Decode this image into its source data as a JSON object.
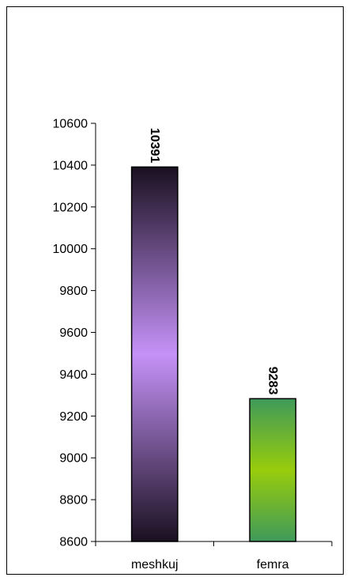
{
  "chart_data": {
    "type": "bar",
    "categories": [
      "meshkuj",
      "femra"
    ],
    "values": [
      10391,
      9283
    ],
    "data_labels": [
      "10391",
      "9283"
    ],
    "ylim": [
      8600,
      10600
    ],
    "yticks": [
      8600,
      8800,
      9000,
      9200,
      9400,
      9600,
      9800,
      10000,
      10200,
      10400,
      10600
    ],
    "grid": false,
    "legend": "none",
    "colors": {
      "meshkuj": {
        "end": "#1a1020",
        "mid": "#c592f8"
      },
      "femra": {
        "end": "#3f9a5a",
        "mid": "#98cc0c"
      }
    }
  }
}
